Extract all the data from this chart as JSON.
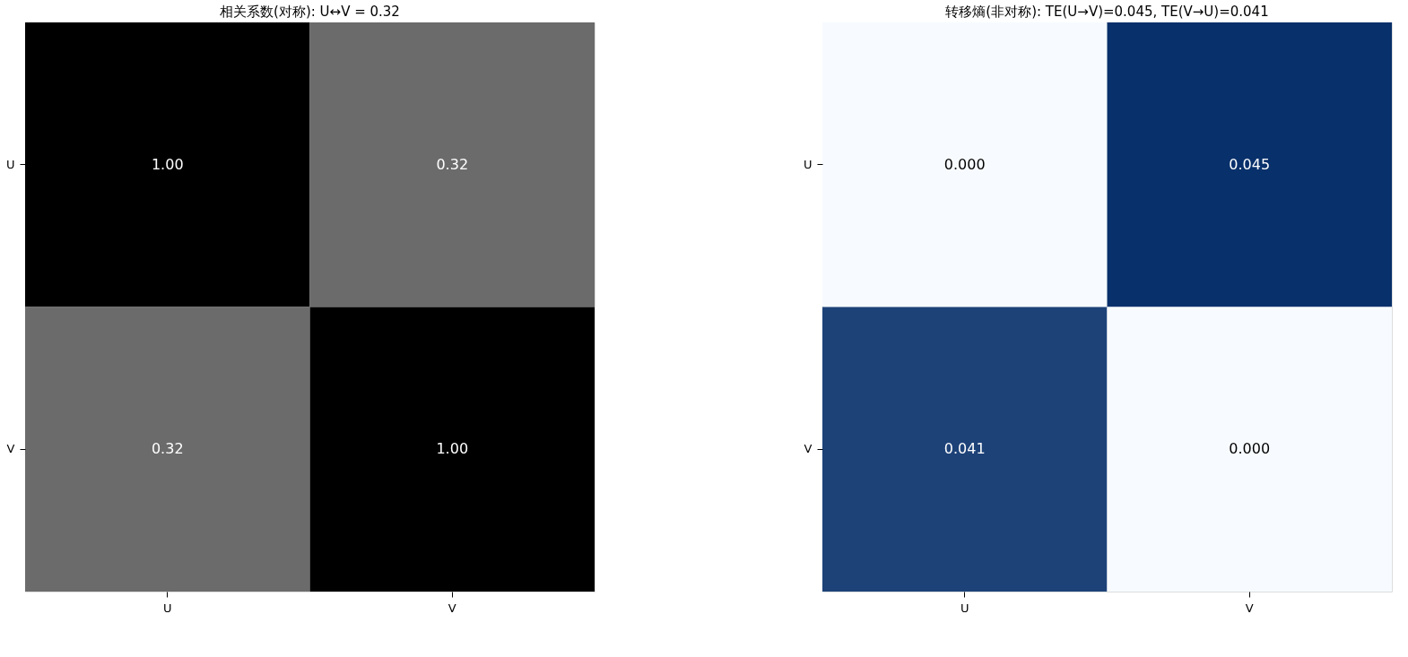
{
  "chart_data": [
    {
      "type": "heatmap",
      "title": "相关系数(对称): U↔V = 0.32",
      "categories": [
        "U",
        "V"
      ],
      "y_categories": [
        "U",
        "V"
      ],
      "cells": [
        [
          1.0,
          0.32
        ],
        [
          0.32,
          1.0
        ]
      ],
      "cell_labels": [
        [
          "1.00",
          "0.32"
        ],
        [
          "0.32",
          "1.00"
        ]
      ],
      "colors": [
        "#6b6b6b",
        "#000000"
      ],
      "data_labels": true
    },
    {
      "type": "heatmap",
      "title": "转移熵(非对称): TE(U→V)=0.045, TE(V→U)=0.041",
      "categories": [
        "U",
        "V"
      ],
      "y_categories": [
        "U",
        "V"
      ],
      "cells": [
        [
          0.0,
          0.045
        ],
        [
          0.041,
          0.0
        ]
      ],
      "cell_labels": [
        [
          "0.000",
          "0.045"
        ],
        [
          "0.041",
          "0.000"
        ]
      ],
      "colors": [
        "#f7fbff",
        "#08306b"
      ],
      "data_labels": true
    }
  ]
}
